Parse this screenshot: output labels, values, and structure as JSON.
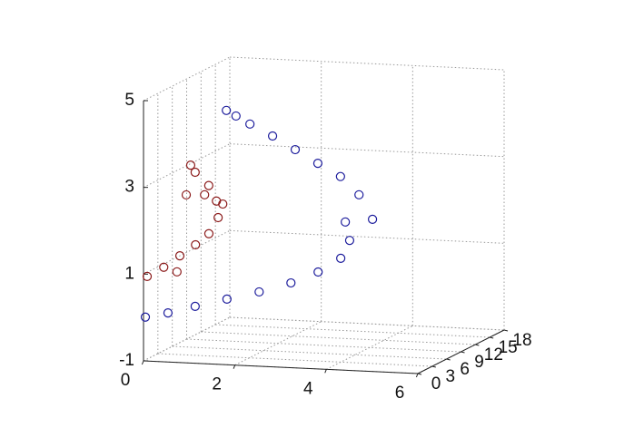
{
  "chart_data": {
    "type": "scatter3d",
    "xlim": [
      0,
      6
    ],
    "xticks": [
      0,
      2,
      4,
      6
    ],
    "ylim": [
      0,
      18
    ],
    "yticks": [
      0,
      3,
      6,
      9,
      12,
      15,
      18
    ],
    "zlim": [
      -1,
      5
    ],
    "zticks": [
      -1,
      1,
      3,
      5
    ],
    "grid": true,
    "series": [
      {
        "color": "#1c1c9c",
        "x": [
          0.04,
          0.43,
          0.92,
          1.51,
          2.11,
          2.7,
          3.19,
          3.58,
          3.67,
          3.47,
          3.96,
          3.56,
          3.05,
          2.45,
          1.85,
          1.25,
          0.65,
          0.24,
          0.05
        ],
        "y": [
          0,
          1,
          2,
          3,
          4,
          5,
          6,
          7,
          8,
          9,
          10,
          11,
          12,
          13,
          14,
          15,
          16,
          17,
          16.8
        ],
        "z": [
          0.01,
          0.07,
          0.19,
          0.33,
          0.47,
          0.65,
          0.87,
          1.15,
          1.51,
          1.87,
          1.9,
          2.39,
          2.73,
          2.95,
          3.18,
          3.41,
          3.6,
          3.71,
          3.84
        ]
      },
      {
        "color": "#8b1a1a",
        "x": [
          0.08,
          0.39,
          0.69,
          0.98,
          1.22,
          1.37,
          1.28,
          1.06,
          0.71,
          0.56,
          1.0,
          0.62,
          0.7,
          1.44
        ],
        "y": [
          0,
          0.5,
          1,
          1.5,
          2,
          2.5,
          3,
          3.5,
          4,
          4.5,
          3.2,
          3,
          0.3,
          2.8
        ],
        "z": [
          0.95,
          1.15,
          1.4,
          1.64,
          1.88,
          2.23,
          2.58,
          2.9,
          3.16,
          3.29,
          2.7,
          2.69,
          1.07,
          2.53
        ]
      }
    ]
  }
}
